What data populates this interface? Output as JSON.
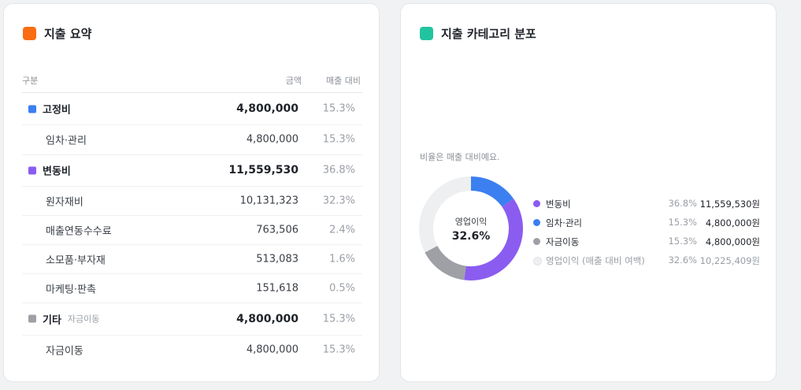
{
  "summary": {
    "title": "지출 요약",
    "accent": "#fa6d12",
    "headers": {
      "category": "구분",
      "amount": "금액",
      "ratio": "매출 대비"
    },
    "rows": [
      {
        "type": "group",
        "label": "고정비",
        "amount": "4,800,000",
        "pct": "15.3%",
        "color": "#3b7ff0"
      },
      {
        "type": "item",
        "label": "임차·관리",
        "amount": "4,800,000",
        "pct": "15.3%"
      },
      {
        "type": "group",
        "label": "변동비",
        "amount": "11,559,530",
        "pct": "36.8%",
        "color": "#8b5cf0"
      },
      {
        "type": "item",
        "label": "원자재비",
        "amount": "10,131,323",
        "pct": "32.3%"
      },
      {
        "type": "item",
        "label": "매출연동수수료",
        "amount": "763,506",
        "pct": "2.4%"
      },
      {
        "type": "item",
        "label": "소모품·부자재",
        "amount": "513,083",
        "pct": "1.6%"
      },
      {
        "type": "item",
        "label": "마케팅·판촉",
        "amount": "151,618",
        "pct": "0.5%"
      },
      {
        "type": "group",
        "label": "기타",
        "note": "자금이동",
        "amount": "4,800,000",
        "pct": "15.3%",
        "color": "#9ea0a6"
      },
      {
        "type": "item",
        "label": "자금이동",
        "amount": "4,800,000",
        "pct": "15.3%"
      }
    ]
  },
  "category": {
    "title": "지출 카테고리 분포",
    "accent": "#22c4a0",
    "note": "비율은 매출 대비예요.",
    "center_label": "영업이익",
    "center_value": "32.6%",
    "legend": [
      {
        "label": "변동비",
        "pct": "36.8%",
        "amount": "11,559,530원",
        "color": "#8b5cf0"
      },
      {
        "label": "임차·관리",
        "pct": "15.3%",
        "amount": "4,800,000원",
        "color": "#3b7ff0"
      },
      {
        "label": "자금이동",
        "pct": "15.3%",
        "amount": "4,800,000원",
        "color": "#9ea0a6"
      },
      {
        "label": "영업이익 (매출 대비 여백)",
        "pct": "32.6%",
        "amount": "10,225,409원",
        "color": "#eeeff1"
      }
    ]
  },
  "chart_data": {
    "type": "pie",
    "title": "",
    "categories": [
      "임차·관리",
      "변동비",
      "자금이동",
      "영업이익 (매출 대비 여백)"
    ],
    "values": [
      15.3,
      36.8,
      15.3,
      32.6
    ],
    "colors": [
      "#3b7ff0",
      "#8b5cf0",
      "#9ea0a6",
      "#eeeff1"
    ],
    "donut": true
  }
}
